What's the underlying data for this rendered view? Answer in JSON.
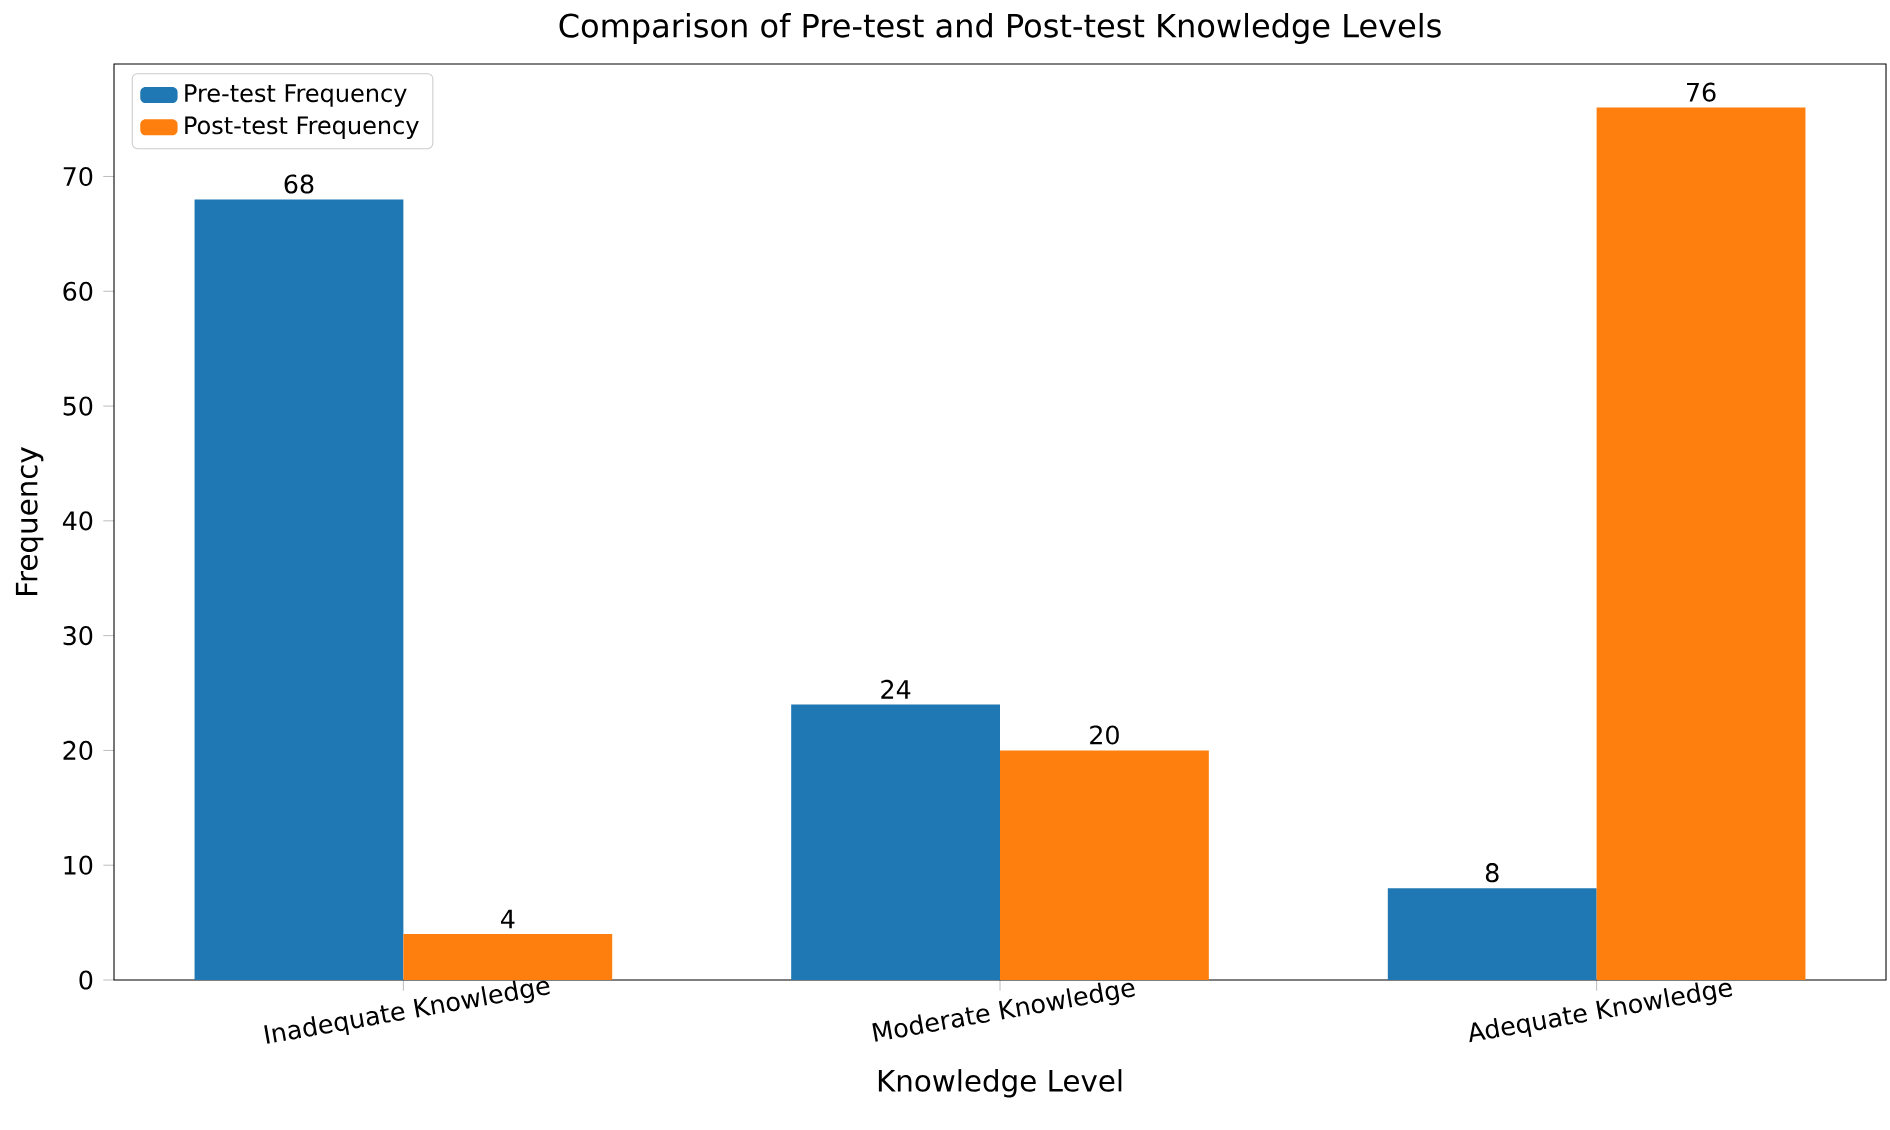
{
  "chart_data": {
    "type": "bar",
    "title": "Comparison of Pre-test and Post-test Knowledge Levels",
    "xlabel": "Knowledge Level",
    "ylabel": "Frequency",
    "categories": [
      "Inadequate Knowledge",
      "Moderate Knowledge",
      "Adequate Knowledge"
    ],
    "series": [
      {
        "name": "Pre-test Frequency",
        "color": "#1f77b4",
        "values": [
          68,
          24,
          8
        ]
      },
      {
        "name": "Post-test Frequency",
        "color": "#ff7f0e",
        "values": [
          4,
          20,
          76
        ]
      }
    ],
    "ylim": [
      0,
      79.8
    ],
    "yticks": [
      0,
      10,
      20,
      30,
      40,
      50,
      60,
      70
    ],
    "data_labels": true,
    "legend": "top left",
    "grid": false
  }
}
